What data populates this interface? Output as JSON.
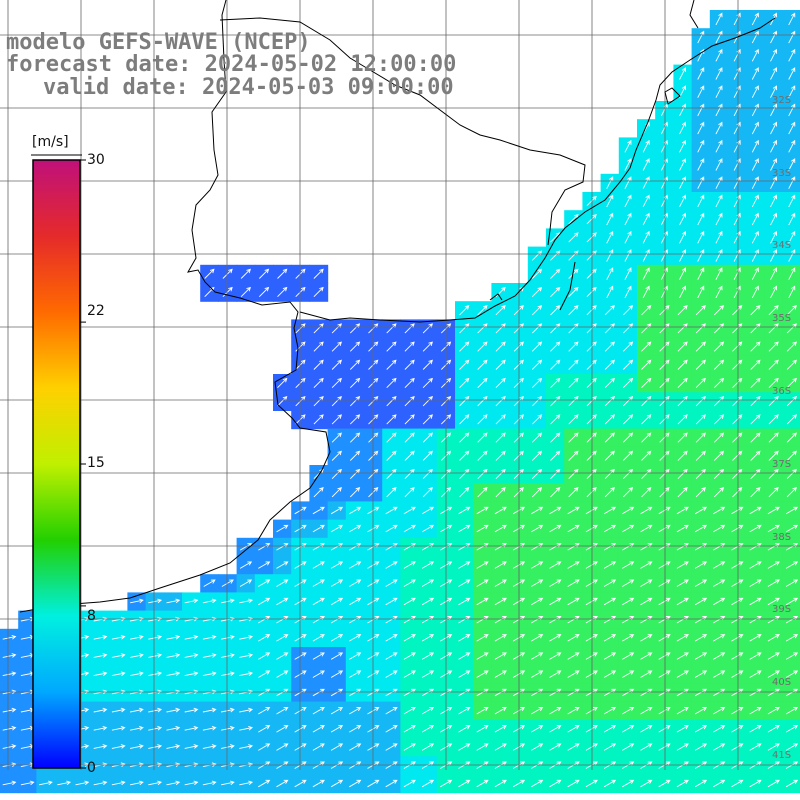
{
  "title": {
    "model": "modelo GEFS-WAVE (NCEP)",
    "forecast": "forecast date: 2024-05-02 12:00:00",
    "valid": "valid date: 2024-05-03 09:00:00"
  },
  "colorbar": {
    "unit": "[m/s]",
    "min": 0,
    "max": 30,
    "ticks": [
      "30",
      "22",
      "15",
      "8",
      "0"
    ],
    "colors": [
      "#c0107a",
      "#e52a2a",
      "#ff6a00",
      "#ffd000",
      "#c0f000",
      "#22d000",
      "#00f0e0",
      "#00a8ff",
      "#0000ff"
    ]
  },
  "map": {
    "lat_labels": [
      "32S",
      "33S",
      "34S",
      "35S",
      "36S",
      "37S",
      "38S",
      "39S",
      "40S",
      "41S"
    ],
    "ocean_colors": {
      "dark_blue": "#2e62ff",
      "blue": "#1f90ff",
      "light_blue": "#15b8f5",
      "cyan": "#00e8f0",
      "aqua": "#00f5c0",
      "green": "#35f060"
    },
    "land_color": "#ffffff",
    "coast_color": "#000000",
    "grid_color": "#666666",
    "arrow_color": "#ffffff"
  }
}
